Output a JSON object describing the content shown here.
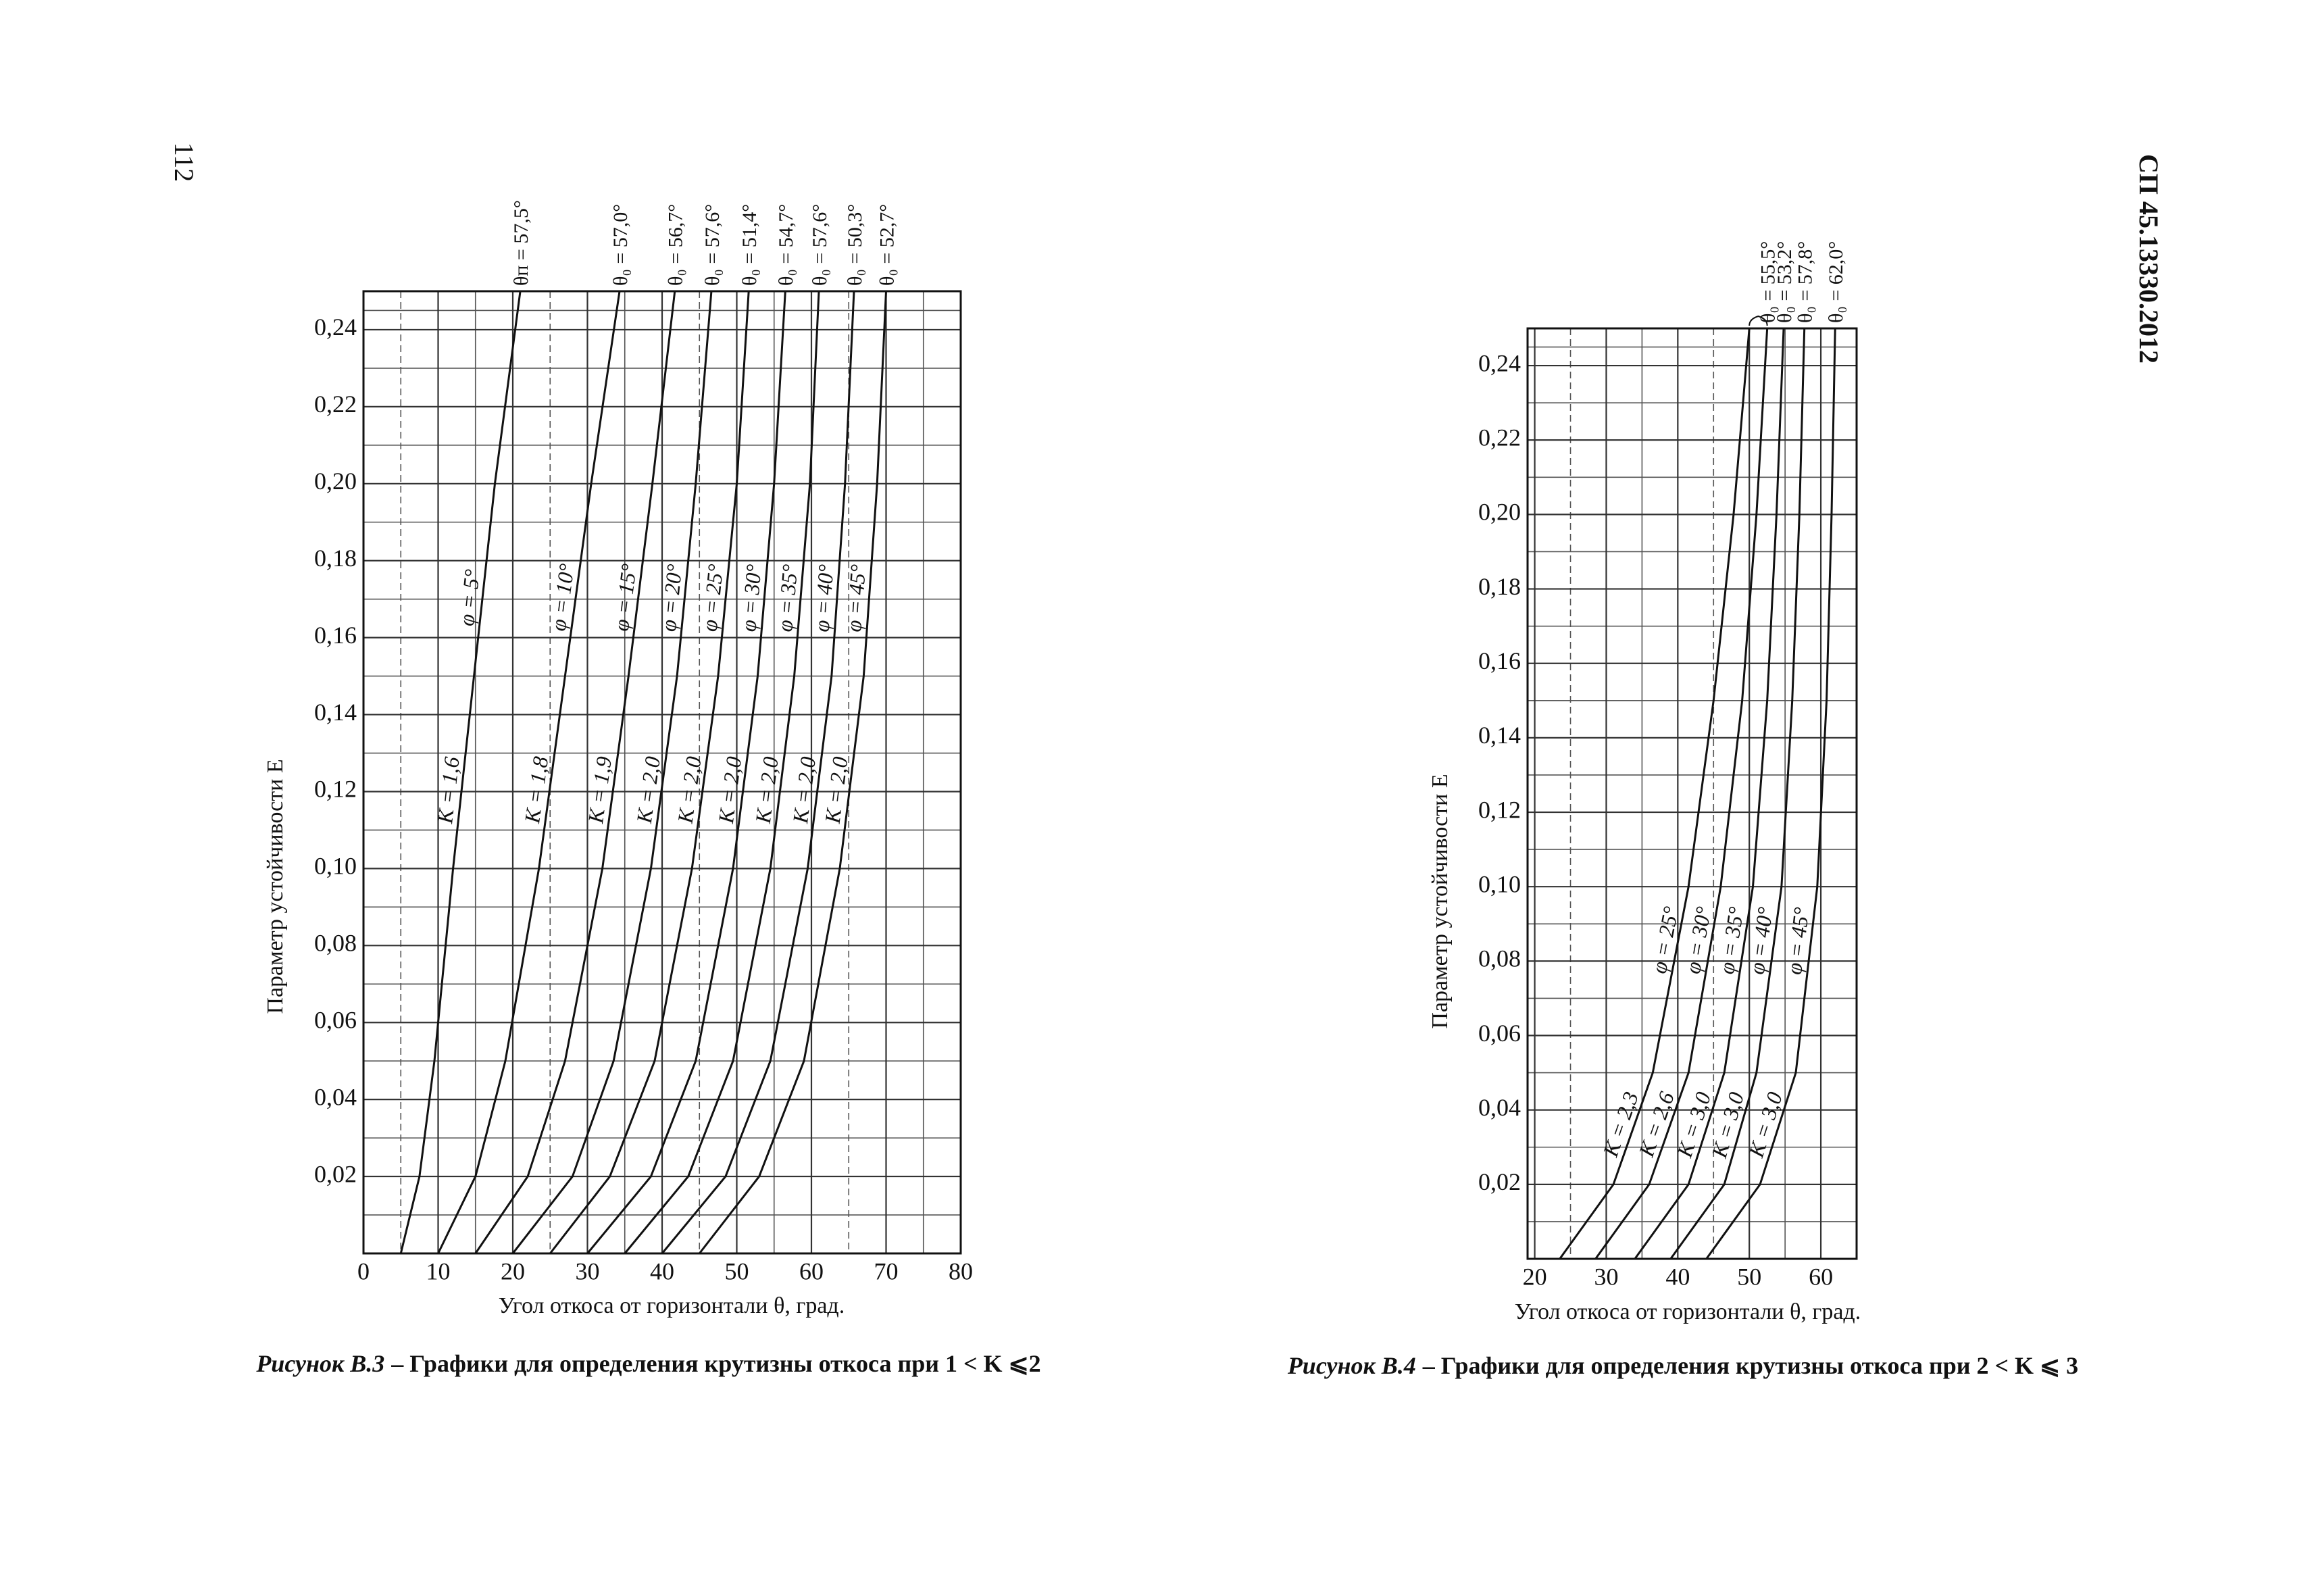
{
  "page_number": "112",
  "document_code": "СП 45.13330.2012",
  "chart_data": [
    {
      "type": "line",
      "figure_label": "Рисунок В.3",
      "caption": "– Графики для определения крутизны откоса при 1 < K ⩽2",
      "x_label": "Угол откоса от горизонтали θ, град.",
      "y_label": "Параметр устойчивости E",
      "xlim": [
        0,
        80
      ],
      "xticks": [
        0,
        10,
        20,
        30,
        40,
        50,
        60,
        70,
        80
      ],
      "ylim": [
        0,
        0.25
      ],
      "yticks": [
        {
          "value": 0.02,
          "label": "0,02"
        },
        {
          "value": 0.04,
          "label": "0,04"
        },
        {
          "value": 0.06,
          "label": "0,06"
        },
        {
          "value": 0.08,
          "label": "0,08"
        },
        {
          "value": 0.1,
          "label": "0,10"
        },
        {
          "value": 0.12,
          "label": "0,12"
        },
        {
          "value": 0.14,
          "label": "0,14"
        },
        {
          "value": 0.16,
          "label": "0,16"
        },
        {
          "value": 0.18,
          "label": "0,18"
        },
        {
          "value": 0.2,
          "label": "0,20"
        },
        {
          "value": 0.22,
          "label": "0,22"
        },
        {
          "value": 0.24,
          "label": "0,24"
        }
      ],
      "grid": true,
      "color": "#111",
      "series": [
        {
          "name": "φ = 5°",
          "k_label": "K = 1,6",
          "theta0_label": "θп = 57,5°",
          "x": [
            5,
            7.5,
            9.5,
            12,
            14.8,
            17.6,
            21
          ],
          "values": [
            0,
            0.02,
            0.05,
            0.1,
            0.15,
            0.2,
            0.25
          ]
        },
        {
          "name": "φ = 10°",
          "k_label": "K = 1,8",
          "theta0_label": "θ₀ = 57,0°",
          "x": [
            10,
            15,
            19,
            23.5,
            27,
            30.5,
            34.3
          ],
          "values": [
            0,
            0.02,
            0.05,
            0.1,
            0.15,
            0.2,
            0.25
          ]
        },
        {
          "name": "φ = 15°",
          "k_label": "K = 1,9",
          "theta0_label": "θ₀ = 56,7°",
          "x": [
            15,
            22,
            27,
            32,
            35.5,
            38.7,
            41.7
          ],
          "values": [
            0,
            0.02,
            0.05,
            0.1,
            0.15,
            0.2,
            0.25
          ]
        },
        {
          "name": "φ = 20°",
          "k_label": "K = 2,0",
          "theta0_label": "θ₀ = 57,6°",
          "x": [
            20,
            28,
            33.5,
            38.5,
            42,
            44.5,
            46.6
          ],
          "values": [
            0,
            0.02,
            0.05,
            0.1,
            0.15,
            0.2,
            0.25
          ]
        },
        {
          "name": "φ = 25°",
          "k_label": "K = 2,0",
          "theta0_label": "θ₀ = 51,4°",
          "x": [
            25,
            33,
            39,
            44,
            47.5,
            50,
            51.6
          ],
          "values": [
            0,
            0.02,
            0.05,
            0.1,
            0.15,
            0.2,
            0.25
          ]
        },
        {
          "name": "φ = 30°",
          "k_label": "K = 2,0",
          "theta0_label": "θ₀ = 54,7°",
          "x": [
            30,
            38.5,
            44.5,
            49.5,
            52.8,
            55,
            56.5
          ],
          "values": [
            0,
            0.02,
            0.05,
            0.1,
            0.15,
            0.2,
            0.25
          ]
        },
        {
          "name": "φ = 35°",
          "k_label": "K = 2,0",
          "theta0_label": "θ₀ = 57,6°",
          "x": [
            35,
            43.5,
            49.5,
            54.5,
            57.7,
            59.8,
            61
          ],
          "values": [
            0,
            0.02,
            0.05,
            0.1,
            0.15,
            0.2,
            0.25
          ]
        },
        {
          "name": "φ = 40°",
          "k_label": "K = 2,0",
          "theta0_label": "θ₀ = 50,3°",
          "x": [
            40,
            48.5,
            54.5,
            59.5,
            62.7,
            64.5,
            65.7
          ],
          "values": [
            0,
            0.02,
            0.05,
            0.1,
            0.15,
            0.2,
            0.25
          ]
        },
        {
          "name": "φ = 45°",
          "k_label": "K = 2,0",
          "theta0_label": "θ₀ = 52,7°",
          "x": [
            45,
            53,
            59,
            63.8,
            67,
            68.8,
            70
          ],
          "values": [
            0,
            0.02,
            0.05,
            0.1,
            0.15,
            0.2,
            0.25
          ]
        }
      ]
    },
    {
      "type": "line",
      "figure_label": "Рисунок В.4",
      "caption": "– Графики для определения крутизны откоса при 2 < K ⩽ 3",
      "x_label": "Угол откоса от горизонтали θ, град.",
      "y_label": "Параметр устойчивости E",
      "xlim": [
        19,
        65
      ],
      "xticks": [
        20,
        30,
        40,
        50,
        60
      ],
      "ylim": [
        0,
        0.25
      ],
      "yticks": [
        {
          "value": 0.02,
          "label": "0,02"
        },
        {
          "value": 0.04,
          "label": "0,04"
        },
        {
          "value": 0.06,
          "label": "0,06"
        },
        {
          "value": 0.08,
          "label": "0,08"
        },
        {
          "value": 0.1,
          "label": "0,10"
        },
        {
          "value": 0.12,
          "label": "0,12"
        },
        {
          "value": 0.14,
          "label": "0,14"
        },
        {
          "value": 0.16,
          "label": "0,16"
        },
        {
          "value": 0.18,
          "label": "0,18"
        },
        {
          "value": 0.2,
          "label": "0,20"
        },
        {
          "value": 0.22,
          "label": "0,22"
        },
        {
          "value": 0.24,
          "label": "0,24"
        }
      ],
      "grid": true,
      "color": "#111",
      "series": [
        {
          "name": "φ = 25°",
          "k_label": "K = 2,3",
          "x": [
            23.5,
            31,
            36.5,
            41.5,
            45,
            47.8,
            50
          ],
          "values": [
            0,
            0.02,
            0.05,
            0.1,
            0.15,
            0.2,
            0.25
          ]
        },
        {
          "name": "φ = 30°",
          "k_label": "K = 2,6",
          "theta0_label": "θ₀ = 55,5°",
          "x": [
            28.5,
            36,
            41.5,
            46,
            49,
            51,
            52.5
          ],
          "values": [
            0,
            0.02,
            0.05,
            0.1,
            0.15,
            0.2,
            0.25
          ]
        },
        {
          "name": "φ = 35°",
          "k_label": "K = 3,0",
          "theta0_label": "θ₀ = 53,2°",
          "x": [
            34,
            41.5,
            46.5,
            50.5,
            52.5,
            53.8,
            54.8
          ],
          "values": [
            0,
            0.02,
            0.05,
            0.1,
            0.15,
            0.2,
            0.25
          ]
        },
        {
          "name": "φ = 40°",
          "k_label": "K = 3,0",
          "theta0_label": "θ₀ = 57,8°",
          "x": [
            39,
            46.5,
            51,
            54.5,
            56,
            57,
            57.7
          ],
          "values": [
            0,
            0.02,
            0.05,
            0.1,
            0.15,
            0.2,
            0.25
          ]
        },
        {
          "name": "φ = 45°",
          "k_label": "K = 3,0",
          "theta0_label": "θ₀ = 62,0°",
          "x": [
            44,
            51.5,
            56.5,
            59.5,
            60.8,
            61.5,
            62
          ],
          "values": [
            0,
            0.02,
            0.05,
            0.1,
            0.15,
            0.2,
            0.25
          ]
        }
      ]
    }
  ]
}
